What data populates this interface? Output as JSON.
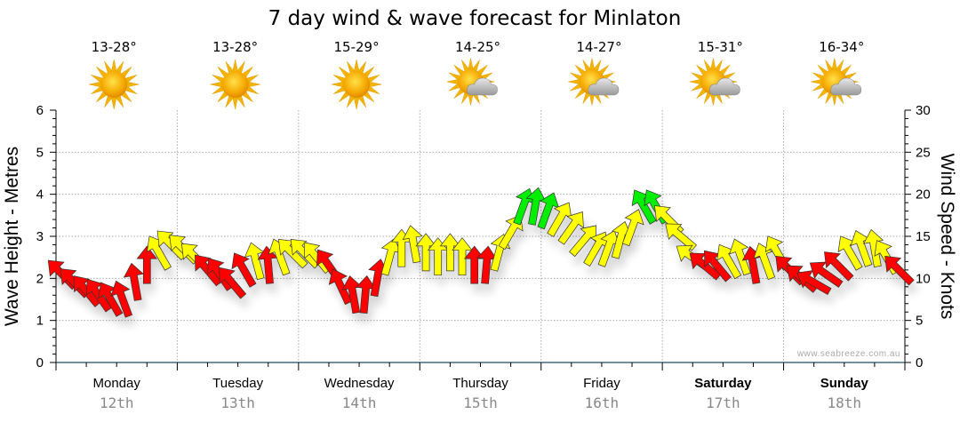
{
  "chart_data": {
    "type": "scatter",
    "title": "7 day wind & wave forecast for Minlaton",
    "ylabel_left": "Wave Height - Metres",
    "ylabel_right": "Wind Speed - Knots",
    "ylim_left": [
      0,
      6
    ],
    "ylim_right": [
      0,
      30
    ],
    "yticks_left": [
      "0",
      "1",
      "2",
      "3",
      "4",
      "5",
      "6"
    ],
    "yticks_right": [
      "0",
      "5",
      "10",
      "15",
      "20",
      "25",
      "30"
    ],
    "grid": true,
    "watermark": "www.seabreeze.com.au",
    "days": [
      {
        "name": "Monday",
        "date": "12th",
        "temp": "13-28°",
        "icon": "sunny-icon",
        "bold": false
      },
      {
        "name": "Tuesday",
        "date": "13th",
        "temp": "13-28°",
        "icon": "sunny-icon",
        "bold": false
      },
      {
        "name": "Wednesday",
        "date": "14th",
        "temp": "15-29°",
        "icon": "sunny-icon",
        "bold": false
      },
      {
        "name": "Thursday",
        "date": "15th",
        "temp": "14-25°",
        "icon": "partly-cloudy-icon",
        "bold": false
      },
      {
        "name": "Friday",
        "date": "16th",
        "temp": "14-27°",
        "icon": "partly-cloudy-icon",
        "bold": false
      },
      {
        "name": "Saturday",
        "date": "17th",
        "temp": "15-31°",
        "icon": "partly-cloudy-icon",
        "bold": true
      },
      {
        "name": "Sunday",
        "date": "18th",
        "temp": "16-34°",
        "icon": "partly-cloudy-icon",
        "bold": true
      }
    ],
    "wind_color_scale": {
      "low": "#ff0000",
      "mid": "#ffff00",
      "high": "#00ee00",
      "mid_from_knots": 12,
      "high_from_knots": 18
    },
    "wind_series": {
      "name": "Wind Speed (knots) / direction arrows",
      "day_fraction": [
        0.05,
        0.15,
        0.25,
        0.35,
        0.45,
        0.55,
        0.65,
        0.75,
        0.85,
        0.95,
        1.05,
        1.15,
        1.25,
        1.35,
        1.45,
        1.55,
        1.65,
        1.75,
        1.85,
        1.95,
        2.05,
        2.15,
        2.25,
        2.35,
        2.45,
        2.55,
        2.65,
        2.75,
        2.85,
        2.95,
        3.05,
        3.15,
        3.25,
        3.35,
        3.45,
        3.55,
        3.65,
        3.75,
        3.85,
        3.95,
        4.05,
        4.15,
        4.25,
        4.35,
        4.45,
        4.55,
        4.65,
        4.75,
        4.85,
        4.95,
        5.05,
        5.15,
        5.25,
        5.35,
        5.45,
        5.55,
        5.65,
        5.75,
        5.85,
        5.95,
        6.05,
        6.15,
        6.25,
        6.35,
        6.45,
        6.55,
        6.65,
        6.75,
        6.85,
        6.95
      ],
      "knots": [
        10.5,
        9.5,
        8.5,
        8,
        7.5,
        7.5,
        9.5,
        11.5,
        13,
        14,
        13.5,
        12.5,
        11,
        10.5,
        9.5,
        11,
        12,
        11.5,
        12.5,
        13,
        13,
        12.5,
        11.5,
        9,
        8,
        8,
        10,
        12.5,
        13.5,
        14,
        13,
        12.5,
        13,
        12.5,
        11.5,
        11.5,
        13,
        15.5,
        18.5,
        18.5,
        18,
        17,
        16,
        14.5,
        13.5,
        13.5,
        14.5,
        16,
        18.5,
        18.5,
        17,
        15,
        12.5,
        11.5,
        11.5,
        12,
        12.5,
        11.5,
        12,
        13,
        11,
        10,
        9.5,
        10.5,
        11.5,
        13,
        13.5,
        13.5,
        12.5,
        11
      ],
      "heading_deg": [
        315,
        315,
        320,
        325,
        330,
        340,
        350,
        0,
        330,
        315,
        315,
        315,
        320,
        325,
        320,
        330,
        345,
        355,
        340,
        315,
        315,
        320,
        325,
        335,
        350,
        5,
        10,
        15,
        0,
        350,
        0,
        0,
        0,
        0,
        0,
        5,
        15,
        30,
        20,
        10,
        20,
        30,
        35,
        40,
        30,
        20,
        15,
        20,
        330,
        330,
        315,
        310,
        305,
        310,
        320,
        330,
        340,
        350,
        340,
        330,
        315,
        310,
        300,
        305,
        315,
        330,
        340,
        350,
        330,
        315
      ]
    }
  }
}
